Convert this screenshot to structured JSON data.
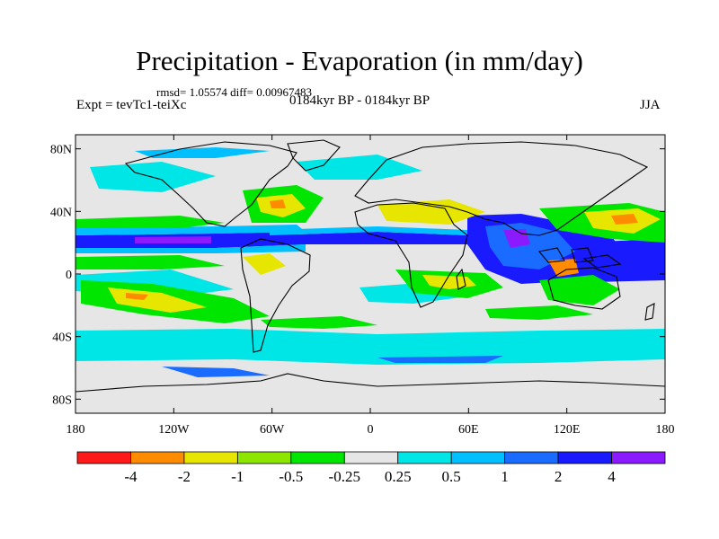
{
  "title": "Precipitation - Evaporation (in mm/day)",
  "stats": "rmsd= 1.05574 diff= 0.00967483",
  "experiment": "Expt = tevTc1-teiXc",
  "period": "0184kyr BP - 0184kyr BP",
  "season": "JJA",
  "map": {
    "projection": "cylindrical equidistant",
    "lat_ticks": [
      {
        "lat": 80,
        "label": "80N"
      },
      {
        "lat": 40,
        "label": "40N"
      },
      {
        "lat": 0,
        "label": "0"
      },
      {
        "lat": -40,
        "label": "40S"
      },
      {
        "lat": -80,
        "label": "80S"
      }
    ],
    "lon_ticks": [
      {
        "lon": -180,
        "label": "180"
      },
      {
        "lon": -120,
        "label": "120W"
      },
      {
        "lon": -60,
        "label": "60W"
      },
      {
        "lon": 0,
        "label": "0"
      },
      {
        "lon": 60,
        "label": "60E"
      },
      {
        "lon": 120,
        "label": "120E"
      },
      {
        "lon": 180,
        "label": "180"
      }
    ],
    "missing_color": "#e6e6e6",
    "colorbar": {
      "colors": [
        "#ff1a1a",
        "#ff8c00",
        "#e6e600",
        "#8ce600",
        "#00e600",
        "#e6e6e6",
        "#00e6e6",
        "#00bfff",
        "#1a6bff",
        "#1a1aff",
        "#8c1aff"
      ],
      "labels": [
        "-4",
        "-2",
        "-1",
        "-0.5",
        "-0.25",
        "0.25",
        "0.5",
        "1",
        "2",
        "4"
      ]
    }
  }
}
